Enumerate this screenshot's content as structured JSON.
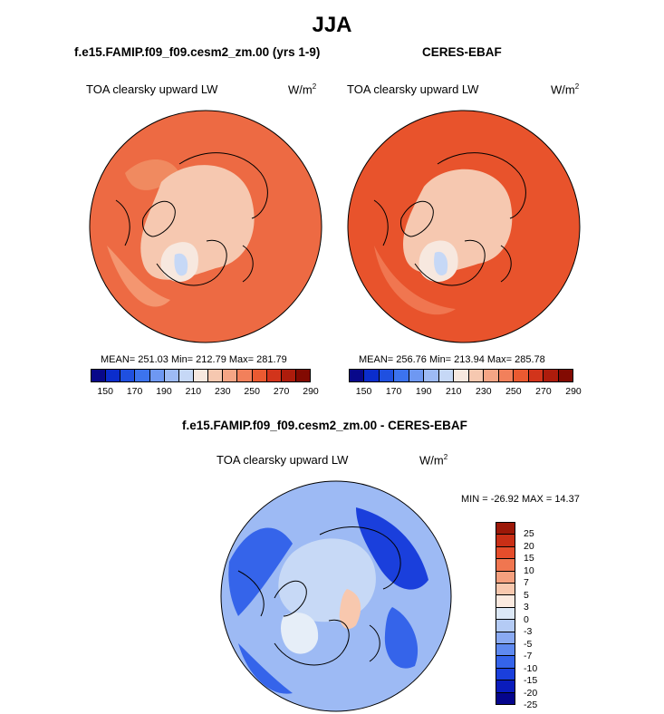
{
  "season": "JJA",
  "panels": [
    {
      "title": "f.e15.FAMIP.f09_f09.cesm2_zm.00 (yrs 1-9)",
      "variable": "TOA clearsky upward LW",
      "units": "W/m",
      "units_sup": "2",
      "stats": "MEAN= 251.03  Min= 212.79  Max= 281.79",
      "mean": 251.03,
      "min": 212.79,
      "max": 281.79
    },
    {
      "title": "CERES-EBAF",
      "variable": "TOA clearsky upward LW",
      "units": "W/m",
      "units_sup": "2",
      "stats": "MEAN= 256.76  Min= 213.94  Max= 285.78",
      "mean": 256.76,
      "min": 213.94,
      "max": 285.78
    }
  ],
  "diff": {
    "title": "f.e15.FAMIP.f09_f09.cesm2_zm.00 - CERES-EBAF",
    "variable": "TOA clearsky upward LW",
    "units": "W/m",
    "units_sup": "2",
    "stats": "MIN = -26.92 MAX =  14.37",
    "min": -26.92,
    "max": 14.37
  },
  "colorbar_abs": {
    "colors": [
      "#08088a",
      "#0b2dcc",
      "#1f50e0",
      "#3c73ee",
      "#6e98f2",
      "#9dbaf4",
      "#c6d8f6",
      "#f7e8df",
      "#f6c8b0",
      "#f5a585",
      "#f2805b",
      "#ea5a31",
      "#d2341b",
      "#ad1c0c",
      "#820a02"
    ],
    "tick_labels": [
      "150",
      "170",
      "190",
      "210",
      "230",
      "250",
      "270",
      "290"
    ]
  },
  "colorbar_diff": {
    "colors": [
      "#05058c",
      "#0a1cbc",
      "#1a3fdc",
      "#3564ea",
      "#5f8af0",
      "#8aaaf2",
      "#b4cbf5",
      "#dce8f7",
      "#fbeae0",
      "#f8c8ae",
      "#f5a07e",
      "#f07650",
      "#e54d2b",
      "#c92f16",
      "#9c1808"
    ],
    "tick_labels": [
      "25",
      "20",
      "15",
      "10",
      "7",
      "5",
      "3",
      "0",
      "-3",
      "-5",
      "-7",
      "-10",
      "-15",
      "-20",
      "-25"
    ]
  }
}
